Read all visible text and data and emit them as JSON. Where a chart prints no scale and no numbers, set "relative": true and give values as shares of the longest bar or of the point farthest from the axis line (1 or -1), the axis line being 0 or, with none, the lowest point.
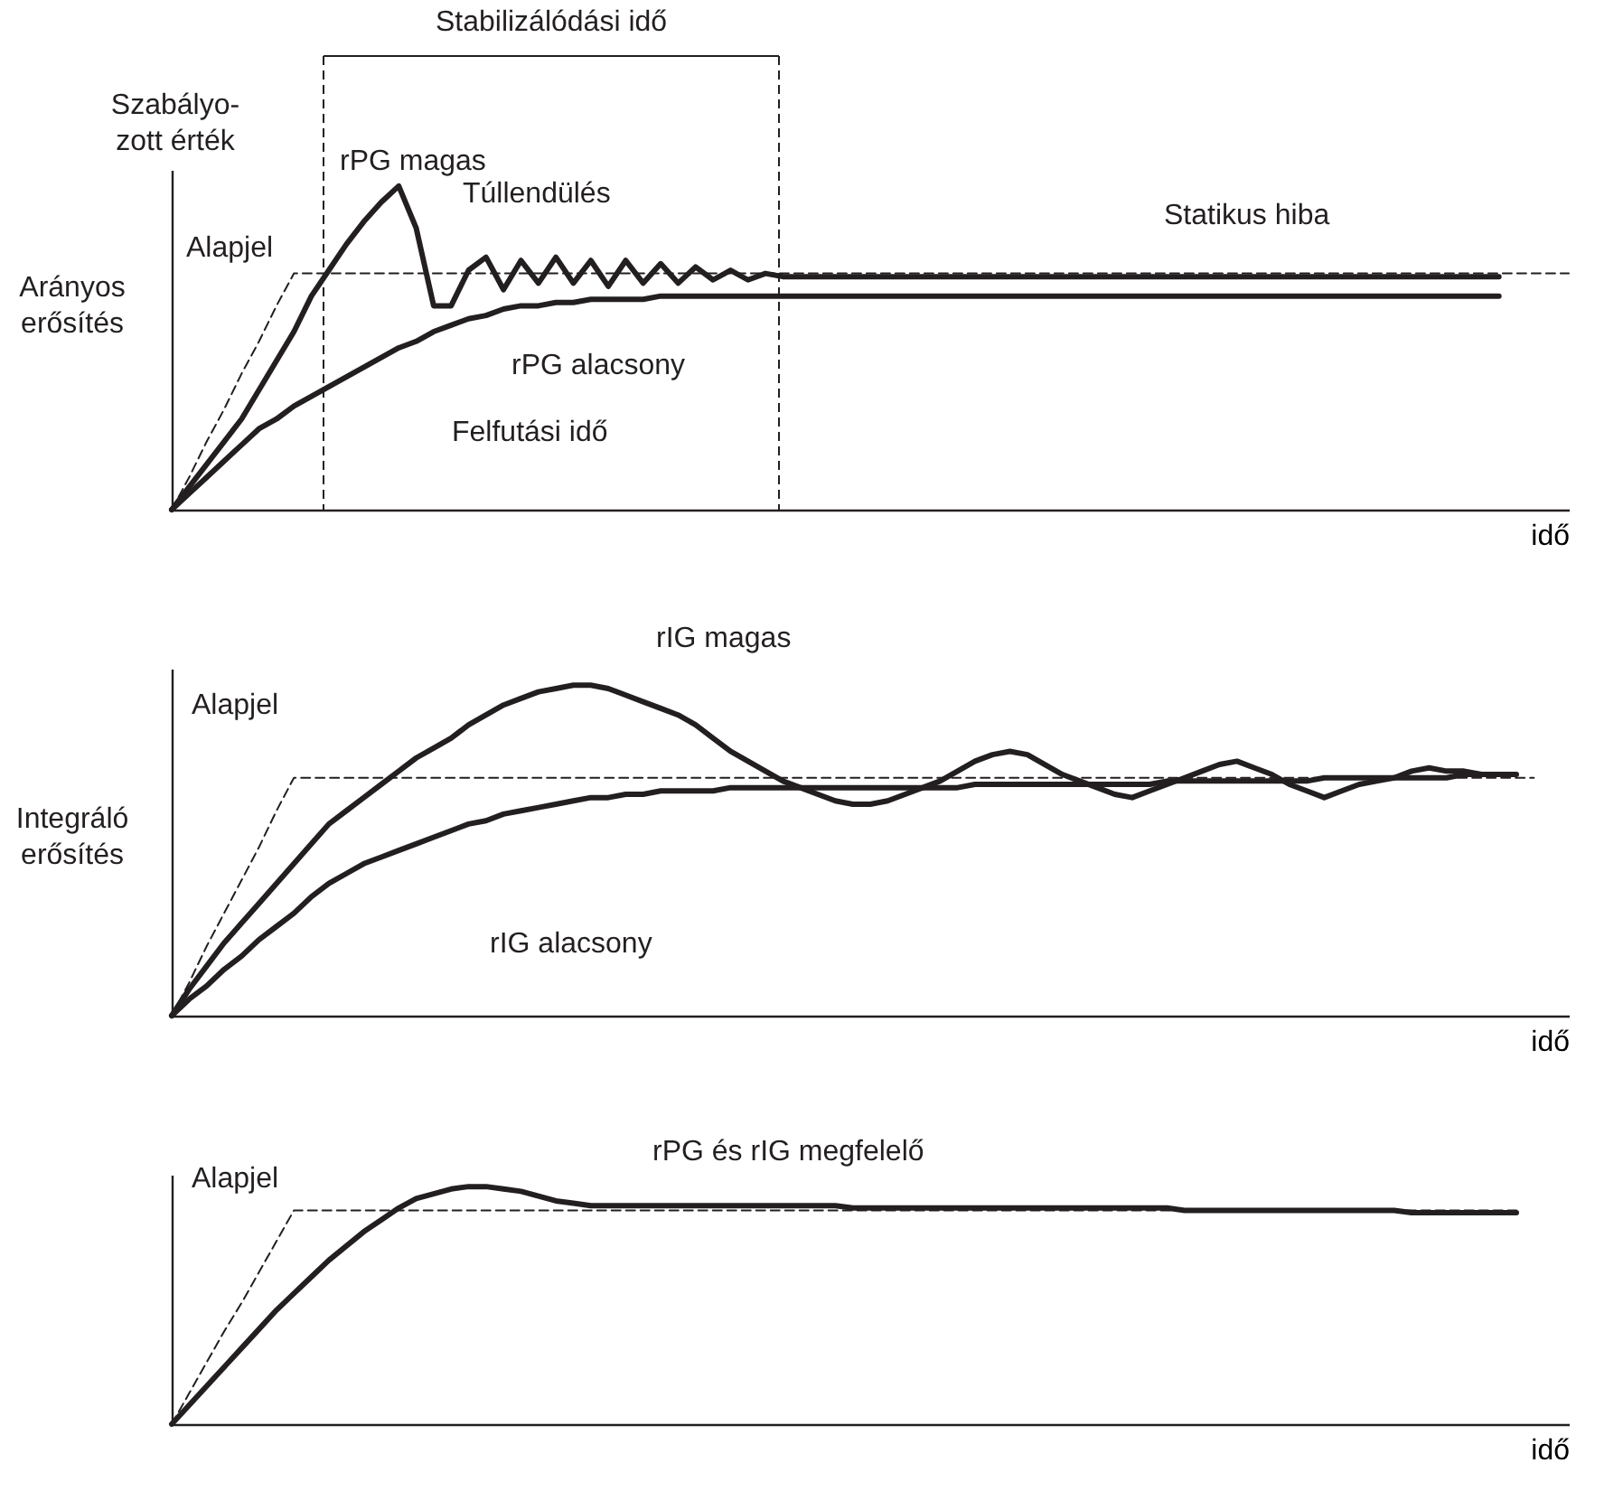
{
  "chart_data": [
    {
      "type": "line",
      "title": "Szabályo-\nzott érték",
      "ylabel": "Arányos erősítés",
      "xlabel": "idő",
      "relative": true,
      "tick_labels": false,
      "categories": [
        null,
        null,
        null,
        null,
        null,
        null,
        null,
        null,
        null,
        null,
        null,
        null,
        null,
        null,
        null,
        null,
        null,
        null,
        null,
        null,
        null,
        null,
        null,
        null,
        null,
        null,
        null,
        null,
        null,
        null,
        null,
        null,
        null,
        null,
        null,
        null,
        null,
        null,
        null,
        null,
        null,
        null,
        null,
        null,
        null,
        null,
        null,
        null,
        null,
        null,
        null,
        null,
        null,
        null,
        null,
        null,
        null,
        null,
        null,
        null,
        null,
        null,
        null,
        null,
        null,
        null,
        null,
        null,
        null,
        null,
        null,
        null,
        null,
        null,
        null,
        null,
        null,
        null,
        null,
        null,
        null
      ],
      "series": [
        {
          "color": "#231f20",
          "line_style": "dashed",
          "values": [
            0,
            0.1,
            0.21,
            0.31,
            0.42,
            0.52,
            0.63,
            0.73,
            0.73,
            0.73,
            0.73,
            0.73,
            0.73,
            0.73,
            0.73,
            0.73,
            0.73,
            0.73,
            0.73,
            0.73,
            0.73,
            0.73,
            0.73,
            0.73,
            0.73,
            0.73,
            0.73,
            0.73,
            0.73,
            0.73,
            0.73,
            0.73,
            0.73,
            0.73,
            0.73,
            0.73,
            0.73,
            0.73,
            0.73,
            0.73,
            0.73,
            0.73,
            0.73,
            0.73,
            0.73,
            0.73,
            0.73,
            0.73,
            0.73,
            0.73,
            0.73,
            0.73,
            0.73,
            0.73,
            0.73,
            0.73,
            0.73,
            0.73,
            0.73,
            0.73,
            0.73,
            0.73,
            0.73,
            0.73,
            0.73,
            0.73,
            0.73,
            0.73,
            0.73,
            0.73,
            0.73,
            0.73,
            0.73,
            0.73,
            0.73,
            0.73,
            0.73,
            0.73,
            0.73,
            0.73,
            0.73
          ]
        },
        {
          "color": "#231f20",
          "line_style": "solid",
          "values": [
            0,
            0.07,
            0.14,
            0.21,
            0.28,
            0.37,
            0.46,
            0.55,
            0.66,
            0.74,
            0.82,
            0.89,
            0.95,
            1,
            0.87,
            0.63,
            0.63,
            0.74,
            0.78,
            0.68,
            0.77,
            0.7,
            0.78,
            0.7,
            0.77,
            0.69,
            0.77,
            0.7,
            0.76,
            0.7,
            0.75,
            0.71,
            0.74,
            0.71,
            0.73,
            0.72,
            0.72,
            0.72,
            0.72,
            0.72,
            0.72,
            0.72,
            0.72,
            0.72,
            0.72,
            0.72,
            0.72,
            0.72,
            0.72,
            0.72,
            0.72,
            0.72,
            0.72,
            0.72,
            0.72,
            0.72,
            0.72,
            0.72,
            0.72,
            0.72,
            0.72,
            0.72,
            0.72,
            0.72,
            0.72,
            0.72,
            0.72,
            0.72,
            0.72,
            0.72,
            0.72,
            0.72,
            0.72,
            0.72,
            0.72,
            0.72,
            0.72,
            null,
            null,
            null,
            null
          ]
        },
        {
          "color": "#231f20",
          "line_style": "solid",
          "values": [
            0,
            0.05,
            0.1,
            0.15,
            0.2,
            0.25,
            0.28,
            0.32,
            0.35,
            0.38,
            0.41,
            0.44,
            0.47,
            0.5,
            0.52,
            0.55,
            0.57,
            0.59,
            0.6,
            0.62,
            0.63,
            0.63,
            0.64,
            0.64,
            0.65,
            0.65,
            0.65,
            0.65,
            0.66,
            0.66,
            0.66,
            0.66,
            0.66,
            0.66,
            0.66,
            0.66,
            0.66,
            0.66,
            0.66,
            0.66,
            0.66,
            0.66,
            0.66,
            0.66,
            0.66,
            0.66,
            0.66,
            0.66,
            0.66,
            0.66,
            0.66,
            0.66,
            0.66,
            0.66,
            0.66,
            0.66,
            0.66,
            0.66,
            0.66,
            0.66,
            0.66,
            0.66,
            0.66,
            0.66,
            0.66,
            0.66,
            0.66,
            0.66,
            0.66,
            0.66,
            0.66,
            0.66,
            0.66,
            0.66,
            0.66,
            0.66,
            0.66,
            null,
            null,
            null,
            null
          ]
        }
      ],
      "annotations": [
        "Alapjel",
        "rPG magas",
        "Túllendülés",
        "Statikus hiba",
        "rPG alacsony",
        "Felfutási idő",
        "Stabilizálódási idő"
      ]
    },
    {
      "type": "line",
      "ylabel": "Integráló erősítés",
      "xlabel": "idő",
      "relative": true,
      "tick_labels": false,
      "categories": [
        null,
        null,
        null,
        null,
        null,
        null,
        null,
        null,
        null,
        null,
        null,
        null,
        null,
        null,
        null,
        null,
        null,
        null,
        null,
        null,
        null,
        null,
        null,
        null,
        null,
        null,
        null,
        null,
        null,
        null,
        null,
        null,
        null,
        null,
        null,
        null,
        null,
        null,
        null,
        null,
        null,
        null,
        null,
        null,
        null,
        null,
        null,
        null,
        null,
        null,
        null,
        null,
        null,
        null,
        null,
        null,
        null,
        null,
        null,
        null,
        null,
        null,
        null,
        null,
        null,
        null,
        null,
        null,
        null,
        null,
        null,
        null,
        null,
        null,
        null,
        null,
        null,
        null,
        null,
        null,
        null
      ],
      "series": [
        {
          "color": "#231f20",
          "line_style": "dashed",
          "values": [
            0,
            0.1,
            0.21,
            0.31,
            0.41,
            0.51,
            0.62,
            0.72,
            0.72,
            0.72,
            0.72,
            0.72,
            0.72,
            0.72,
            0.72,
            0.72,
            0.72,
            0.72,
            0.72,
            0.72,
            0.72,
            0.72,
            0.72,
            0.72,
            0.72,
            0.72,
            0.72,
            0.72,
            0.72,
            0.72,
            0.72,
            0.72,
            0.72,
            0.72,
            0.72,
            0.72,
            0.72,
            0.72,
            0.72,
            0.72,
            0.72,
            0.72,
            0.72,
            0.72,
            0.72,
            0.72,
            0.72,
            0.72,
            0.72,
            0.72,
            0.72,
            0.72,
            0.72,
            0.72,
            0.72,
            0.72,
            0.72,
            0.72,
            0.72,
            0.72,
            0.72,
            0.72,
            0.72,
            0.72,
            0.72,
            0.72,
            0.72,
            0.72,
            0.72,
            0.72,
            0.72,
            0.72,
            0.72,
            0.72,
            0.72,
            0.72,
            0.72,
            0.72,
            0.72,
            null,
            null
          ]
        },
        {
          "color": "#231f20",
          "line_style": "solid",
          "values": [
            0,
            0.08,
            0.15,
            0.22,
            0.28,
            0.34,
            0.4,
            0.46,
            0.52,
            0.58,
            0.62,
            0.66,
            0.7,
            0.74,
            0.78,
            0.81,
            0.84,
            0.88,
            0.91,
            0.94,
            0.96,
            0.98,
            0.99,
            1,
            1,
            0.99,
            0.97,
            0.95,
            0.93,
            0.91,
            0.88,
            0.84,
            0.8,
            0.77,
            0.74,
            0.71,
            0.69,
            0.67,
            0.65,
            0.64,
            0.64,
            0.65,
            0.67,
            0.69,
            0.71,
            0.74,
            0.77,
            0.79,
            0.8,
            0.79,
            0.76,
            0.73,
            0.71,
            0.69,
            0.67,
            0.66,
            0.68,
            0.7,
            0.72,
            0.74,
            0.76,
            0.77,
            0.75,
            0.73,
            0.7,
            0.68,
            0.66,
            0.68,
            0.7,
            0.71,
            0.72,
            0.74,
            0.75,
            0.74,
            0.74,
            0.73,
            0.73,
            0.73,
            null,
            null,
            null
          ]
        },
        {
          "color": "#231f20",
          "line_style": "solid",
          "values": [
            0,
            0.05,
            0.09,
            0.14,
            0.18,
            0.23,
            0.27,
            0.31,
            0.36,
            0.4,
            0.43,
            0.46,
            0.48,
            0.5,
            0.52,
            0.54,
            0.56,
            0.58,
            0.59,
            0.61,
            0.62,
            0.63,
            0.64,
            0.65,
            0.66,
            0.66,
            0.67,
            0.67,
            0.68,
            0.68,
            0.68,
            0.68,
            0.69,
            0.69,
            0.69,
            0.69,
            0.69,
            0.69,
            0.69,
            0.69,
            0.69,
            0.69,
            0.69,
            0.69,
            0.69,
            0.69,
            0.7,
            0.7,
            0.7,
            0.7,
            0.7,
            0.7,
            0.7,
            0.7,
            0.7,
            0.7,
            0.7,
            0.71,
            0.71,
            0.71,
            0.71,
            0.71,
            0.71,
            0.71,
            0.71,
            0.71,
            0.72,
            0.72,
            0.72,
            0.72,
            0.72,
            0.72,
            0.72,
            0.72,
            0.73,
            0.73,
            0.73,
            null,
            null,
            null,
            null
          ]
        }
      ],
      "annotations": [
        "Alapjel",
        "rIG magas",
        "rIG alacsony"
      ]
    },
    {
      "type": "line",
      "xlabel": "idő",
      "relative": true,
      "tick_labels": false,
      "categories": [
        null,
        null,
        null,
        null,
        null,
        null,
        null,
        null,
        null,
        null,
        null,
        null,
        null,
        null,
        null,
        null,
        null,
        null,
        null,
        null,
        null,
        null,
        null,
        null,
        null,
        null,
        null,
        null,
        null,
        null,
        null,
        null,
        null,
        null,
        null,
        null,
        null,
        null,
        null,
        null,
        null,
        null,
        null,
        null,
        null,
        null,
        null,
        null,
        null,
        null,
        null,
        null,
        null,
        null,
        null,
        null,
        null,
        null,
        null,
        null,
        null,
        null,
        null,
        null,
        null,
        null,
        null,
        null,
        null,
        null,
        null,
        null,
        null,
        null,
        null,
        null,
        null,
        null,
        null,
        null,
        null
      ],
      "series": [
        {
          "color": "#231f20",
          "line_style": "dashed",
          "values": [
            0,
            0.13,
            0.26,
            0.39,
            0.51,
            0.64,
            0.77,
            0.9,
            0.9,
            0.9,
            0.9,
            0.9,
            0.9,
            0.9,
            0.9,
            0.9,
            0.9,
            0.9,
            0.9,
            0.9,
            0.9,
            0.9,
            0.9,
            0.9,
            0.9,
            0.9,
            0.9,
            0.9,
            0.9,
            0.9,
            0.9,
            0.9,
            0.9,
            0.9,
            0.9,
            0.9,
            0.9,
            0.9,
            0.9,
            0.9,
            0.9,
            0.9,
            0.9,
            0.9,
            0.9,
            0.9,
            0.9,
            0.9,
            0.9,
            0.9,
            0.9,
            0.9,
            0.9,
            0.9,
            0.9,
            0.9,
            0.9,
            0.9,
            0.9,
            0.9,
            0.9,
            0.9,
            0.9,
            0.9,
            0.9,
            0.9,
            0.9,
            0.9,
            0.9,
            0.9,
            0.9,
            0.9,
            0.9,
            0.9,
            0.9,
            0.9,
            0.9,
            0.9,
            null,
            null,
            null
          ]
        },
        {
          "color": "#231f20",
          "line_style": "solid",
          "values": [
            0,
            0.08,
            0.16,
            0.24,
            0.32,
            0.4,
            0.48,
            0.55,
            0.62,
            0.69,
            0.75,
            0.81,
            0.86,
            0.91,
            0.95,
            0.97,
            0.99,
            1,
            1,
            0.99,
            0.98,
            0.96,
            0.94,
            0.93,
            0.92,
            0.92,
            0.92,
            0.92,
            0.92,
            0.92,
            0.92,
            0.92,
            0.92,
            0.92,
            0.92,
            0.92,
            0.92,
            0.92,
            0.92,
            0.91,
            0.91,
            0.91,
            0.91,
            0.91,
            0.91,
            0.91,
            0.91,
            0.91,
            0.91,
            0.91,
            0.91,
            0.91,
            0.91,
            0.91,
            0.91,
            0.91,
            0.91,
            0.91,
            0.9,
            0.9,
            0.9,
            0.9,
            0.9,
            0.9,
            0.9,
            0.9,
            0.9,
            0.9,
            0.9,
            0.9,
            0.9,
            0.89,
            0.89,
            0.89,
            0.89,
            0.89,
            0.89,
            0.89,
            null,
            null,
            null
          ]
        }
      ],
      "annotations": [
        "Alapjel",
        "rPG és rIG megfelelő"
      ]
    }
  ]
}
